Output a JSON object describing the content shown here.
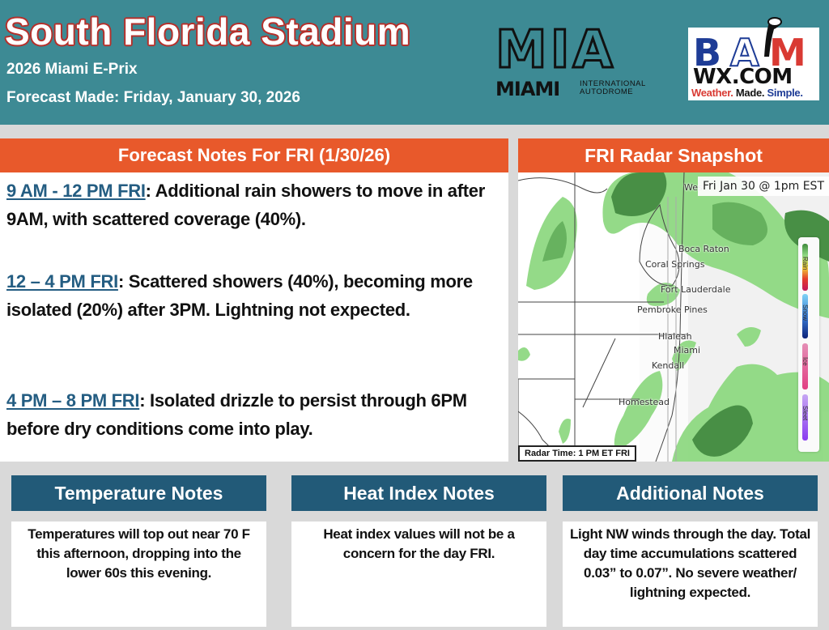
{
  "header": {
    "title": "South Florida Stadium",
    "event": "2026 Miami E-Prix",
    "forecast_made": "Forecast Made: Friday, January 30, 2026",
    "logos": {
      "mia": {
        "big": "MIA",
        "miami": "MIAMI",
        "line1": "INTERNATIONAL",
        "line2": "AUTODROME"
      },
      "bam": {
        "b": "B",
        "a": "A",
        "m": "M",
        "wx": "WX.COM",
        "tag_weather": "Weather.",
        "tag_made": "Made.",
        "tag_simple": "Simple."
      }
    }
  },
  "forecast_notes": {
    "title": "Forecast Notes For FRI (1/30/26)",
    "items": [
      {
        "time": "9 AM - 12 PM FRI",
        "text": " Additional rain showers to move in after 9AM, with scattered coverage (40%)."
      },
      {
        "time": "12 – 4 PM FRI",
        "text": " Scattered showers (40%), becoming more isolated (20%) after 3PM.  Lightning not expected."
      },
      {
        "time": "4 PM – 8 PM FRI",
        "text": " Isolated drizzle to persist through 6PM before dry conditions come into play."
      }
    ]
  },
  "radar": {
    "title": "FRI Radar Snapshot",
    "timestamp": "Fri Jan 30 @ 1pm EST",
    "radar_time": "Radar Time: 1 PM ET FRI",
    "cities": [
      "Wes",
      "Boca Raton",
      "Coral Springs",
      "Fort Lauderdale",
      "Pembroke Pines",
      "Hialeah",
      "Miami",
      "Kendall",
      "Homestead"
    ],
    "legend": [
      "Rain",
      "Snow",
      "Ice",
      "Sleet"
    ],
    "colors": {
      "rain_light": "#8fd982",
      "rain_dark": "#3f8a3c"
    }
  },
  "bottom": [
    {
      "title": "Temperature Notes",
      "text": "Temperatures will top out near 70 F this afternoon, dropping into the lower 60s this evening."
    },
    {
      "title": "Heat Index Notes",
      "text": "Heat index values will not be a concern for the day FRI."
    },
    {
      "title": "Additional Notes",
      "text": "Light NW winds through the day.  Total day time accumulations scattered 0.03” to 0.07”.  No severe weather/ lightning expected."
    }
  ],
  "colors": {
    "header_bg": "#3d8a94",
    "orange": "#e8592b",
    "navy": "#225a78",
    "title_outline": "#b5302b"
  }
}
